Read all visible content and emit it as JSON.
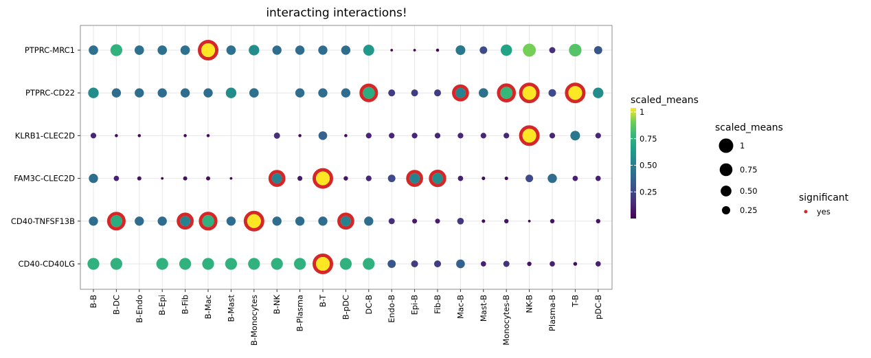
{
  "chart_data": {
    "type": "scatter",
    "title": "interacting interactions!",
    "xlabel": "",
    "ylabel": "",
    "x_categories": [
      "B-B",
      "B-DC",
      "B-Endo",
      "B-Epi",
      "B-Fib",
      "B-Mac",
      "B-Mast",
      "B-Monocytes",
      "B-NK",
      "B-Plasma",
      "B-T",
      "B-pDC",
      "DC-B",
      "Endo-B",
      "Epi-B",
      "Fib-B",
      "Mac-B",
      "Mast-B",
      "Monocytes-B",
      "NK-B",
      "Plasma-B",
      "T-B",
      "pDC-B"
    ],
    "y_categories": [
      "PTPRC-MRC1",
      "PTPRC-CD22",
      "KLRB1-CLEC2D",
      "FAM3C-CLEC2D",
      "CD40-TNFSF13B",
      "CD40-CD40LG"
    ],
    "scaled_means": [
      [
        0.42,
        0.72,
        0.42,
        0.42,
        0.42,
        1.0,
        0.42,
        0.55,
        0.4,
        0.4,
        0.4,
        0.4,
        0.6,
        0.01,
        0.01,
        0.02,
        0.45,
        0.25,
        0.65,
        0.88,
        0.15,
        0.82,
        0.3
      ],
      [
        0.55,
        0.4,
        0.4,
        0.4,
        0.4,
        0.4,
        0.55,
        0.42,
        null,
        0.4,
        0.4,
        0.4,
        0.7,
        0.2,
        0.2,
        0.2,
        0.5,
        0.42,
        0.75,
        1.0,
        0.25,
        1.0,
        0.55
      ],
      [
        0.12,
        0.02,
        0.02,
        null,
        0.02,
        0.02,
        null,
        null,
        0.15,
        0.02,
        0.35,
        0.02,
        0.12,
        0.12,
        0.12,
        0.12,
        0.12,
        0.12,
        0.12,
        1.0,
        0.12,
        0.45,
        0.12
      ],
      [
        0.4,
        0.1,
        0.05,
        0.01,
        0.05,
        0.05,
        0.01,
        null,
        0.5,
        0.08,
        1.0,
        0.06,
        0.12,
        0.25,
        0.5,
        0.55,
        0.1,
        0.03,
        0.03,
        0.25,
        0.4,
        0.1,
        0.1
      ],
      [
        0.4,
        0.7,
        0.4,
        0.4,
        0.5,
        0.72,
        0.4,
        1.0,
        0.4,
        0.4,
        0.4,
        0.5,
        0.4,
        0.15,
        0.08,
        0.08,
        0.18,
        0.03,
        0.06,
        0.01,
        0.06,
        null,
        0.06
      ],
      [
        0.72,
        0.72,
        null,
        0.72,
        0.72,
        0.72,
        0.72,
        0.72,
        0.72,
        0.72,
        1.0,
        0.72,
        0.72,
        0.3,
        0.2,
        0.2,
        0.35,
        0.1,
        0.15,
        0.06,
        0.1,
        0.04,
        0.1
      ]
    ],
    "significant": [
      [
        0,
        0,
        0,
        0,
        0,
        1,
        0,
        0,
        0,
        0,
        0,
        0,
        0,
        0,
        0,
        0,
        0,
        0,
        0,
        0,
        0,
        0,
        0
      ],
      [
        0,
        0,
        0,
        0,
        0,
        0,
        0,
        0,
        0,
        0,
        0,
        0,
        1,
        0,
        0,
        0,
        1,
        0,
        1,
        1,
        0,
        1,
        0
      ],
      [
        0,
        0,
        0,
        0,
        0,
        0,
        0,
        0,
        0,
        0,
        0,
        0,
        0,
        0,
        0,
        0,
        0,
        0,
        0,
        1,
        0,
        0,
        0
      ],
      [
        0,
        0,
        0,
        0,
        0,
        0,
        0,
        0,
        1,
        0,
        1,
        0,
        0,
        0,
        1,
        1,
        0,
        0,
        0,
        0,
        0,
        0,
        0
      ],
      [
        0,
        1,
        0,
        0,
        1,
        1,
        0,
        1,
        0,
        0,
        0,
        1,
        0,
        0,
        0,
        0,
        0,
        0,
        0,
        0,
        0,
        0,
        0
      ],
      [
        0,
        0,
        0,
        0,
        0,
        0,
        0,
        0,
        0,
        0,
        1,
        0,
        0,
        0,
        0,
        0,
        0,
        0,
        0,
        0,
        0,
        0,
        0
      ]
    ],
    "color_legend": {
      "title": "scaled_means",
      "ticks": [
        "1",
        "0.75",
        "0.50",
        "0.25"
      ],
      "tick_values": [
        1,
        0.75,
        0.5,
        0.25
      ]
    },
    "size_legend": {
      "title": "scaled_means",
      "labels": [
        "1",
        "0.75",
        "0.50",
        "0.25"
      ],
      "values": [
        1,
        0.75,
        0.5,
        0.25
      ]
    },
    "significance_legend": {
      "title": "significant",
      "label": "yes",
      "color": "#d62728"
    },
    "colormap": "viridis",
    "grid": true,
    "legend_position": "right"
  }
}
